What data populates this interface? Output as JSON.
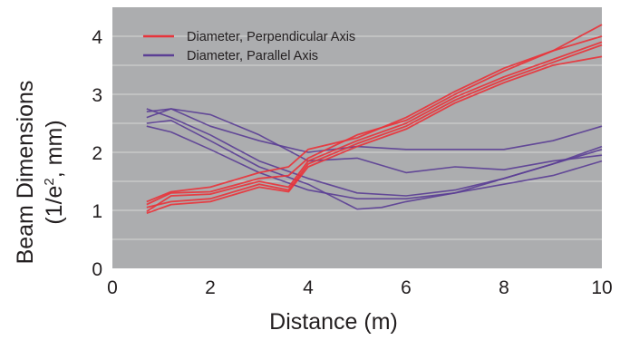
{
  "chart_data": {
    "type": "line",
    "xlabel": "Distance (m)",
    "ylabel_line1": "Beam Dimensions",
    "ylabel_line2_prefix": "(1/e",
    "ylabel_line2_sup": "2",
    "ylabel_line2_suffix": ", mm)",
    "xlim": [
      0,
      10
    ],
    "ylim": [
      0,
      4.5
    ],
    "x_ticks": [
      "0",
      "2",
      "4",
      "6",
      "8",
      "10"
    ],
    "y_ticks": [
      "0",
      "1",
      "2",
      "3",
      "4"
    ],
    "grid": "horizontal",
    "legend_position": "top-left",
    "colors": {
      "plot_background": "#acadaf",
      "gridline": "#d6d6d6",
      "perpendicular": "#e8343b",
      "parallel": "#5b3f95"
    },
    "legend": [
      {
        "label": "Diameter, Perpendicular Axis",
        "color": "#e8343b"
      },
      {
        "label": "Diameter, Parallel Axis",
        "color": "#5b3f95"
      }
    ],
    "series": [
      {
        "group": "perpendicular",
        "x": [
          0.7,
          1.2,
          2,
          3,
          3.6,
          4,
          5,
          6,
          7,
          8,
          9,
          10
        ],
        "y": [
          1.15,
          1.32,
          1.4,
          1.65,
          1.75,
          2.05,
          2.25,
          2.6,
          3.05,
          3.45,
          3.75,
          4.2
        ]
      },
      {
        "group": "perpendicular",
        "x": [
          0.7,
          1.2,
          2,
          3,
          3.6,
          4,
          5,
          6,
          7,
          8,
          9,
          10
        ],
        "y": [
          1.1,
          1.3,
          1.32,
          1.55,
          1.6,
          1.9,
          2.3,
          2.55,
          3.0,
          3.4,
          3.75,
          4.0
        ]
      },
      {
        "group": "perpendicular",
        "x": [
          0.7,
          1.2,
          2,
          3,
          3.6,
          4,
          5,
          6,
          7,
          8,
          9,
          10
        ],
        "y": [
          0.98,
          1.25,
          1.28,
          1.5,
          1.4,
          1.85,
          2.2,
          2.5,
          2.95,
          3.3,
          3.6,
          3.9
        ]
      },
      {
        "group": "perpendicular",
        "x": [
          0.7,
          1.2,
          2,
          3,
          3.6,
          4,
          5,
          6,
          7,
          8,
          9,
          10
        ],
        "y": [
          1.05,
          1.15,
          1.2,
          1.45,
          1.35,
          1.8,
          2.15,
          2.45,
          2.9,
          3.25,
          3.55,
          3.85
        ]
      },
      {
        "group": "perpendicular",
        "x": [
          0.7,
          1.2,
          2,
          3,
          3.6,
          4,
          5,
          6,
          7,
          8,
          9,
          10
        ],
        "y": [
          0.95,
          1.1,
          1.15,
          1.4,
          1.32,
          1.75,
          2.1,
          2.4,
          2.85,
          3.2,
          3.5,
          3.65
        ]
      },
      {
        "group": "parallel",
        "x": [
          0.7,
          1.2,
          2,
          3,
          4,
          5,
          6,
          7,
          8,
          9,
          10
        ],
        "y": [
          2.7,
          2.75,
          2.65,
          2.3,
          1.85,
          1.9,
          1.65,
          1.75,
          1.7,
          1.85,
          1.95
        ]
      },
      {
        "group": "parallel",
        "x": [
          0.7,
          1.2,
          2,
          3,
          4,
          5,
          6,
          7,
          8,
          9,
          10
        ],
        "y": [
          2.6,
          2.75,
          2.45,
          2.2,
          2.0,
          2.1,
          2.05,
          2.05,
          2.05,
          2.2,
          2.45
        ]
      },
      {
        "group": "parallel",
        "x": [
          0.7,
          1.2,
          2,
          3,
          4,
          5,
          6,
          7,
          8,
          9,
          10
        ],
        "y": [
          2.75,
          2.6,
          2.3,
          1.85,
          1.55,
          1.3,
          1.25,
          1.35,
          1.55,
          1.8,
          2.1
        ]
      },
      {
        "group": "parallel",
        "x": [
          0.7,
          1.2,
          2,
          3,
          4,
          5,
          5.5,
          6,
          7,
          8,
          9,
          10
        ],
        "y": [
          2.5,
          2.55,
          2.2,
          1.75,
          1.45,
          1.02,
          1.05,
          1.15,
          1.3,
          1.55,
          1.8,
          2.05
        ]
      },
      {
        "group": "parallel",
        "x": [
          0.7,
          1.2,
          2,
          3,
          4,
          5,
          6,
          7,
          8,
          9,
          10
        ],
        "y": [
          2.45,
          2.35,
          2.05,
          1.65,
          1.35,
          1.2,
          1.2,
          1.3,
          1.45,
          1.6,
          1.85
        ]
      }
    ]
  }
}
